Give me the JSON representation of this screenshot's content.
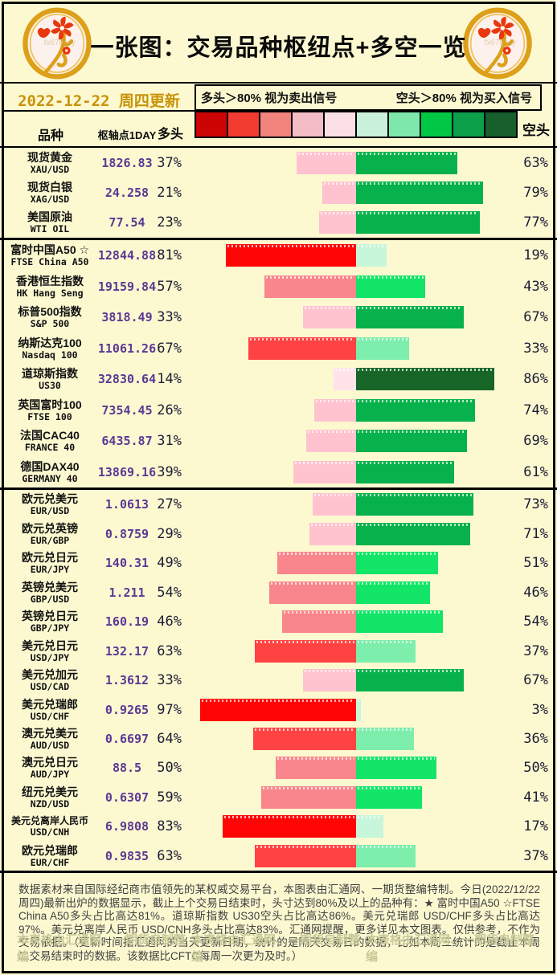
{
  "title": "一张图：交易品种枢纽点+多空一览",
  "date_note": "2022-12-22 周四更新",
  "legend": {
    "long_rule": "多头＞80% 视为卖出信号",
    "short_rule": "空头＞80% 视为买入信号"
  },
  "columns": {
    "instrument": "品种",
    "pivot": "枢轴点1DAY",
    "long": "多头",
    "short": "空头"
  },
  "scale": {
    "colors": [
      "#cc0404",
      "#f23b31",
      "#f2837d",
      "#f4bcc4",
      "#fbdfe6",
      "#c9f0d8",
      "#7ee8ac",
      "#00c845",
      "#0ca04a",
      "#175f2d"
    ]
  },
  "bar_colors": {
    "long_buckets": [
      {
        "min": 80,
        "color": "#fe0606"
      },
      {
        "min": 60,
        "color": "#ff4343"
      },
      {
        "min": 40,
        "color": "#f9868d"
      },
      {
        "min": 20,
        "color": "#ffc3cf"
      },
      {
        "min": 0,
        "color": "#ffe3e9"
      }
    ],
    "short_buckets": [
      {
        "min": 80,
        "color": "#176627"
      },
      {
        "min": 60,
        "color": "#07b14b"
      },
      {
        "min": 40,
        "color": "#12e567"
      },
      {
        "min": 20,
        "color": "#7deeab"
      },
      {
        "min": 0,
        "color": "#c7f6da"
      }
    ]
  },
  "sections": [
    {
      "rows": [
        {
          "name_cn": "现货黄金",
          "name_en": "XAU/USD",
          "pivot": "1826.83",
          "long": 37,
          "short": 63
        },
        {
          "name_cn": "现货白银",
          "name_en": "XAG/USD",
          "pivot": "24.258",
          "long": 21,
          "short": 79
        },
        {
          "name_cn": "美国原油",
          "name_en": "WTI OIL",
          "pivot": "77.54",
          "long": 23,
          "short": 77
        }
      ]
    },
    {
      "rows": [
        {
          "name_cn": "富时中国A50 ☆",
          "name_en": "FTSE China A50",
          "pivot": "12844.88",
          "long": 81,
          "short": 19
        },
        {
          "name_cn": "香港恒生指数",
          "name_en": "HK Hang Seng",
          "pivot": "19159.84",
          "long": 57,
          "short": 43
        },
        {
          "name_cn": "标普500指数",
          "name_en": "S&P 500",
          "pivot": "3818.49",
          "long": 33,
          "short": 67
        },
        {
          "name_cn": "纳斯达克100",
          "name_en": "Nasdaq 100",
          "pivot": "11061.26",
          "long": 67,
          "short": 33
        },
        {
          "name_cn": "道琼斯指数",
          "name_en": "US30",
          "pivot": "32830.64",
          "long": 14,
          "short": 86
        },
        {
          "name_cn": "英国富时100",
          "name_en": "FTSE 100",
          "pivot": "7354.45",
          "long": 26,
          "short": 74
        },
        {
          "name_cn": "法国CAC40",
          "name_en": "FRANCE 40",
          "pivot": "6435.87",
          "long": 31,
          "short": 69
        },
        {
          "name_cn": "德国DAX40",
          "name_en": "GERMANY 40",
          "pivot": "13869.16",
          "long": 39,
          "short": 61
        }
      ]
    },
    {
      "rows": [
        {
          "name_cn": "欧元兑美元",
          "name_en": "EUR/USD",
          "pivot": "1.0613",
          "long": 27,
          "short": 73
        },
        {
          "name_cn": "欧元兑英镑",
          "name_en": "EUR/GBP",
          "pivot": "0.8759",
          "long": 29,
          "short": 71
        },
        {
          "name_cn": "欧元兑日元",
          "name_en": "EUR/JPY",
          "pivot": "140.31",
          "long": 49,
          "short": 51
        },
        {
          "name_cn": "英镑兑美元",
          "name_en": "GBP/USD",
          "pivot": "1.211",
          "long": 54,
          "short": 46
        },
        {
          "name_cn": "英镑兑日元",
          "name_en": "GBP/JPY",
          "pivot": "160.19",
          "long": 46,
          "short": 54
        },
        {
          "name_cn": "美元兑日元",
          "name_en": "USD/JPY",
          "pivot": "132.17",
          "long": 63,
          "short": 37
        },
        {
          "name_cn": "美元兑加元",
          "name_en": "USD/CAD",
          "pivot": "1.3612",
          "long": 33,
          "short": 67
        },
        {
          "name_cn": "美元兑瑞郎",
          "name_en": "USD/CHF",
          "pivot": "0.9265",
          "long": 97,
          "short": 3
        },
        {
          "name_cn": "澳元兑美元",
          "name_en": "AUD/USD",
          "pivot": "0.6697",
          "long": 64,
          "short": 36
        },
        {
          "name_cn": "澳元兑日元",
          "name_en": "AUD/JPY",
          "pivot": "88.5",
          "long": 50,
          "short": 50
        },
        {
          "name_cn": "纽元兑美元",
          "name_en": "NZD/USD",
          "pivot": "0.6307",
          "long": 59,
          "short": 41
        },
        {
          "name_cn": "美元兑离岸人民币",
          "name_en": "USD/CNH",
          "pivot": "6.9808",
          "long": 83,
          "short": 17
        },
        {
          "name_cn": "欧元兑瑞郎",
          "name_en": "EUR/CHF",
          "pivot": "0.9835",
          "long": 63,
          "short": 37
        }
      ]
    }
  ],
  "chart_data": {
    "type": "bar",
    "subtype": "diverging_stacked_percent_horizontal",
    "title": "一张图：交易品种枢纽点+多空一览",
    "legend_position": "top",
    "categories": [
      "XAU/USD",
      "XAG/USD",
      "WTI OIL",
      "FTSE China A50",
      "HK Hang Seng",
      "S&P 500",
      "Nasdaq 100",
      "US30",
      "FTSE 100",
      "FRANCE 40",
      "GERMANY 40",
      "EUR/USD",
      "EUR/GBP",
      "EUR/JPY",
      "GBP/USD",
      "GBP/JPY",
      "USD/JPY",
      "USD/CAD",
      "USD/CHF",
      "AUD/USD",
      "AUD/JPY",
      "NZD/USD",
      "USD/CNH",
      "EUR/CHF"
    ],
    "series": [
      {
        "name": "多头",
        "values": [
          37,
          21,
          23,
          81,
          57,
          33,
          67,
          14,
          26,
          31,
          39,
          27,
          29,
          49,
          54,
          46,
          63,
          33,
          97,
          64,
          50,
          59,
          83,
          63
        ]
      },
      {
        "name": "空头",
        "values": [
          63,
          79,
          77,
          19,
          43,
          67,
          33,
          86,
          74,
          69,
          61,
          73,
          71,
          51,
          46,
          54,
          37,
          67,
          3,
          36,
          50,
          41,
          17,
          37
        ]
      }
    ],
    "pivot_points_1day": [
      1826.83,
      24.258,
      77.54,
      12844.88,
      19159.84,
      3818.49,
      11061.26,
      32830.64,
      7354.45,
      6435.87,
      13869.16,
      1.0613,
      0.8759,
      140.31,
      1.211,
      160.19,
      132.17,
      1.3612,
      0.9265,
      0.6697,
      88.5,
      0.6307,
      6.9808,
      0.9835
    ]
  },
  "coin_watermark": "fx678 yly",
  "footer": {
    "paragraph": "数据素材来自国际经纪商市值领先的某权威交易平台，本图表由汇通网、一期货整编特制。今日(2022/12/22周四)最新出炉的数据显示，截止上个交易日结束时，头寸达到80%及以上的品种有：★ 富时中国A50 ☆FTSE China A50多头占比高达81%。道琼斯指数 US30空头占比高达86%。美元兑瑞郎 USD/CHF多头占比高达97%。美元兑离岸人民币 USD/CNH多头占比高达83%。汇通网提醒，更多详见本文图表。仅供参考，不作为交易依据。（更新时间指汇通网的当天更新日期，统计的是隔天交易日的数据，比如本周三统计的是截止本周二交易结束时的数据。该数据比CFTC每周一次更为及时。）",
    "watermark": "本表格由汇通网、一期货自制整编",
    "watermark_count": 3
  }
}
